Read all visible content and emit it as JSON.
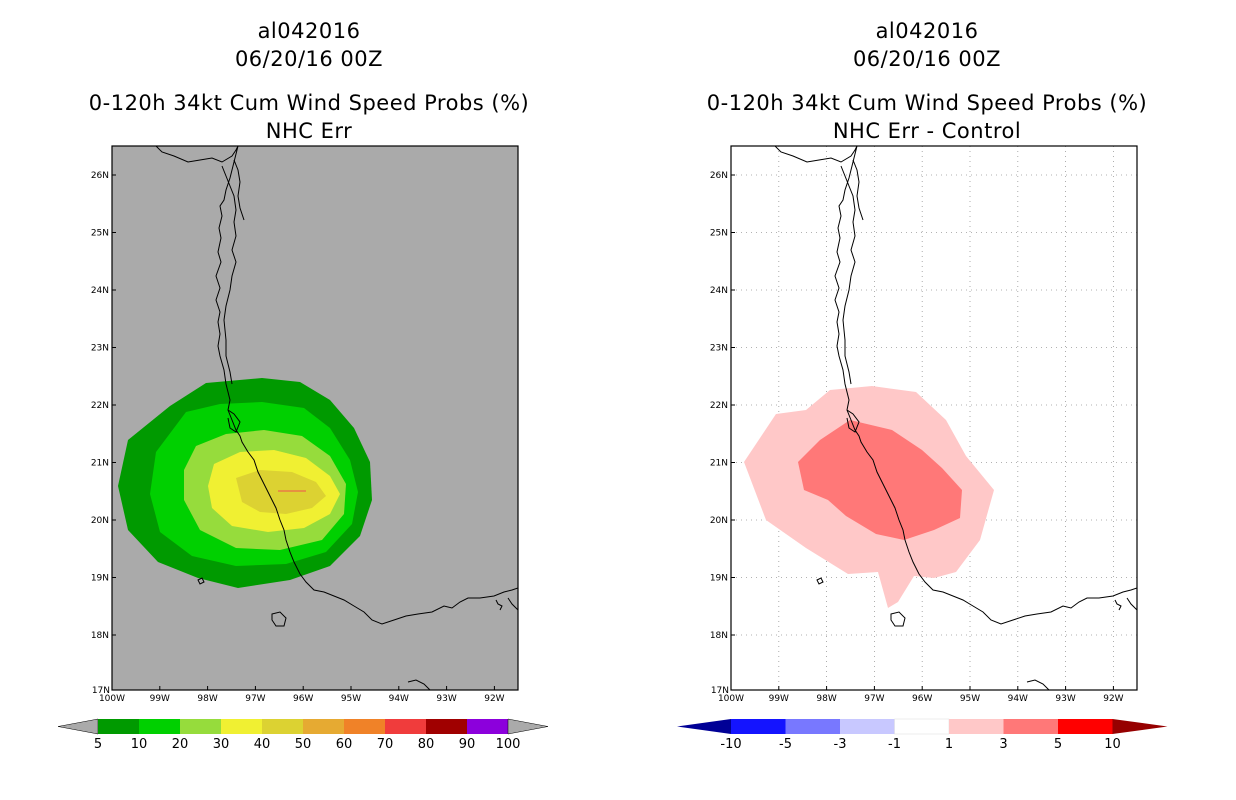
{
  "left_panel": {
    "storm_id": "al042016",
    "datetime": "06/20/16 00Z",
    "product": "0-120h 34kt Cum Wind Speed Probs (%)",
    "subtitle": "NHC Err",
    "lon_ticks": [
      "100W",
      "99W",
      "98W",
      "97W",
      "96W",
      "95W",
      "94W",
      "93W",
      "92W"
    ],
    "lat_ticks": [
      "26N",
      "25N",
      "24N",
      "23N",
      "22N",
      "21N",
      "20N",
      "19N",
      "18N",
      "17N"
    ],
    "colorbar": {
      "colors": [
        "#009a00",
        "#00d000",
        "#96dc3c",
        "#f0f032",
        "#dcd232",
        "#e6aa32",
        "#f08228",
        "#f03c3c",
        "#a00000",
        "#8c00dc"
      ],
      "labels": [
        "5",
        "10",
        "20",
        "30",
        "40",
        "50",
        "60",
        "70",
        "80",
        "90",
        "100"
      ]
    }
  },
  "right_panel": {
    "storm_id": "al042016",
    "datetime": "06/20/16 00Z",
    "product": "0-120h 34kt Cum Wind Speed Probs (%)",
    "subtitle": "NHC Err - Control",
    "lon_ticks": [
      "100W",
      "99W",
      "98W",
      "97W",
      "96W",
      "95W",
      "94W",
      "93W",
      "92W"
    ],
    "lat_ticks": [
      "26N",
      "25N",
      "24N",
      "23N",
      "22N",
      "21N",
      "20N",
      "19N",
      "18N",
      "17N"
    ],
    "colorbar": {
      "colors": [
        "#1414ff",
        "#7878ff",
        "#c8c8ff",
        "#ffffff",
        "#ffc8c8",
        "#ff7878",
        "#ff0000"
      ],
      "end_low": "#000096",
      "end_high": "#960000",
      "labels": [
        "-10",
        "-5",
        "-3",
        "-1",
        "1",
        "3",
        "5",
        "10"
      ]
    }
  }
}
